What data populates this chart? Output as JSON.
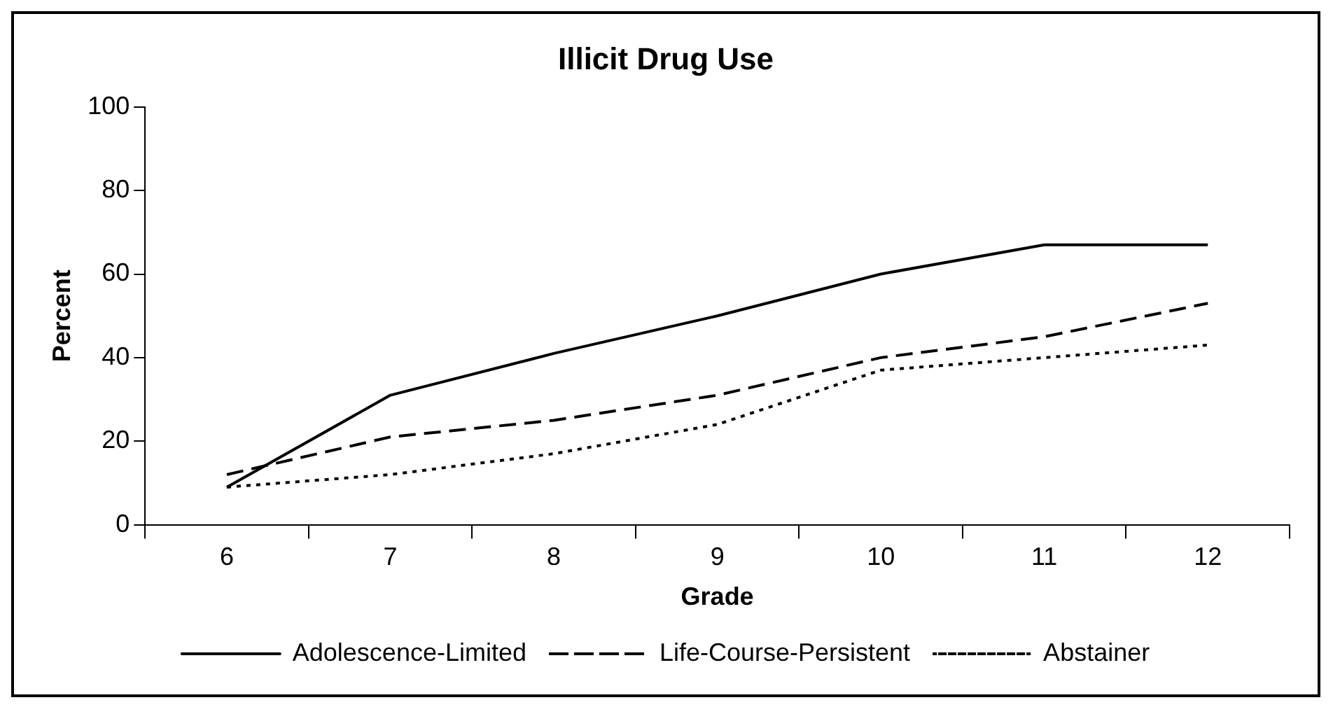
{
  "chart_data": {
    "type": "line",
    "title": "Illicit Drug Use",
    "xlabel": "Grade",
    "ylabel": "Percent",
    "categories": [
      "6",
      "7",
      "8",
      "9",
      "10",
      "11",
      "12"
    ],
    "series": [
      {
        "name": "Adolescence-Limited",
        "color": "#000000",
        "line_style": "solid",
        "values": [
          9,
          31,
          41,
          50,
          60,
          67,
          67
        ]
      },
      {
        "name": "Life-Course-Persistent",
        "color": "#000000",
        "line_style": "dashed",
        "values": [
          12,
          21,
          25,
          31,
          40,
          45,
          53
        ]
      },
      {
        "name": "Abstainer",
        "color": "#000000",
        "line_style": "dotted",
        "values": [
          9,
          12,
          17,
          24,
          37,
          40,
          43
        ]
      }
    ],
    "ylim": [
      0,
      100
    ],
    "yticks": [
      0,
      20,
      40,
      60,
      80,
      100
    ],
    "grid": false,
    "legend": "bottom",
    "marker": "none"
  }
}
